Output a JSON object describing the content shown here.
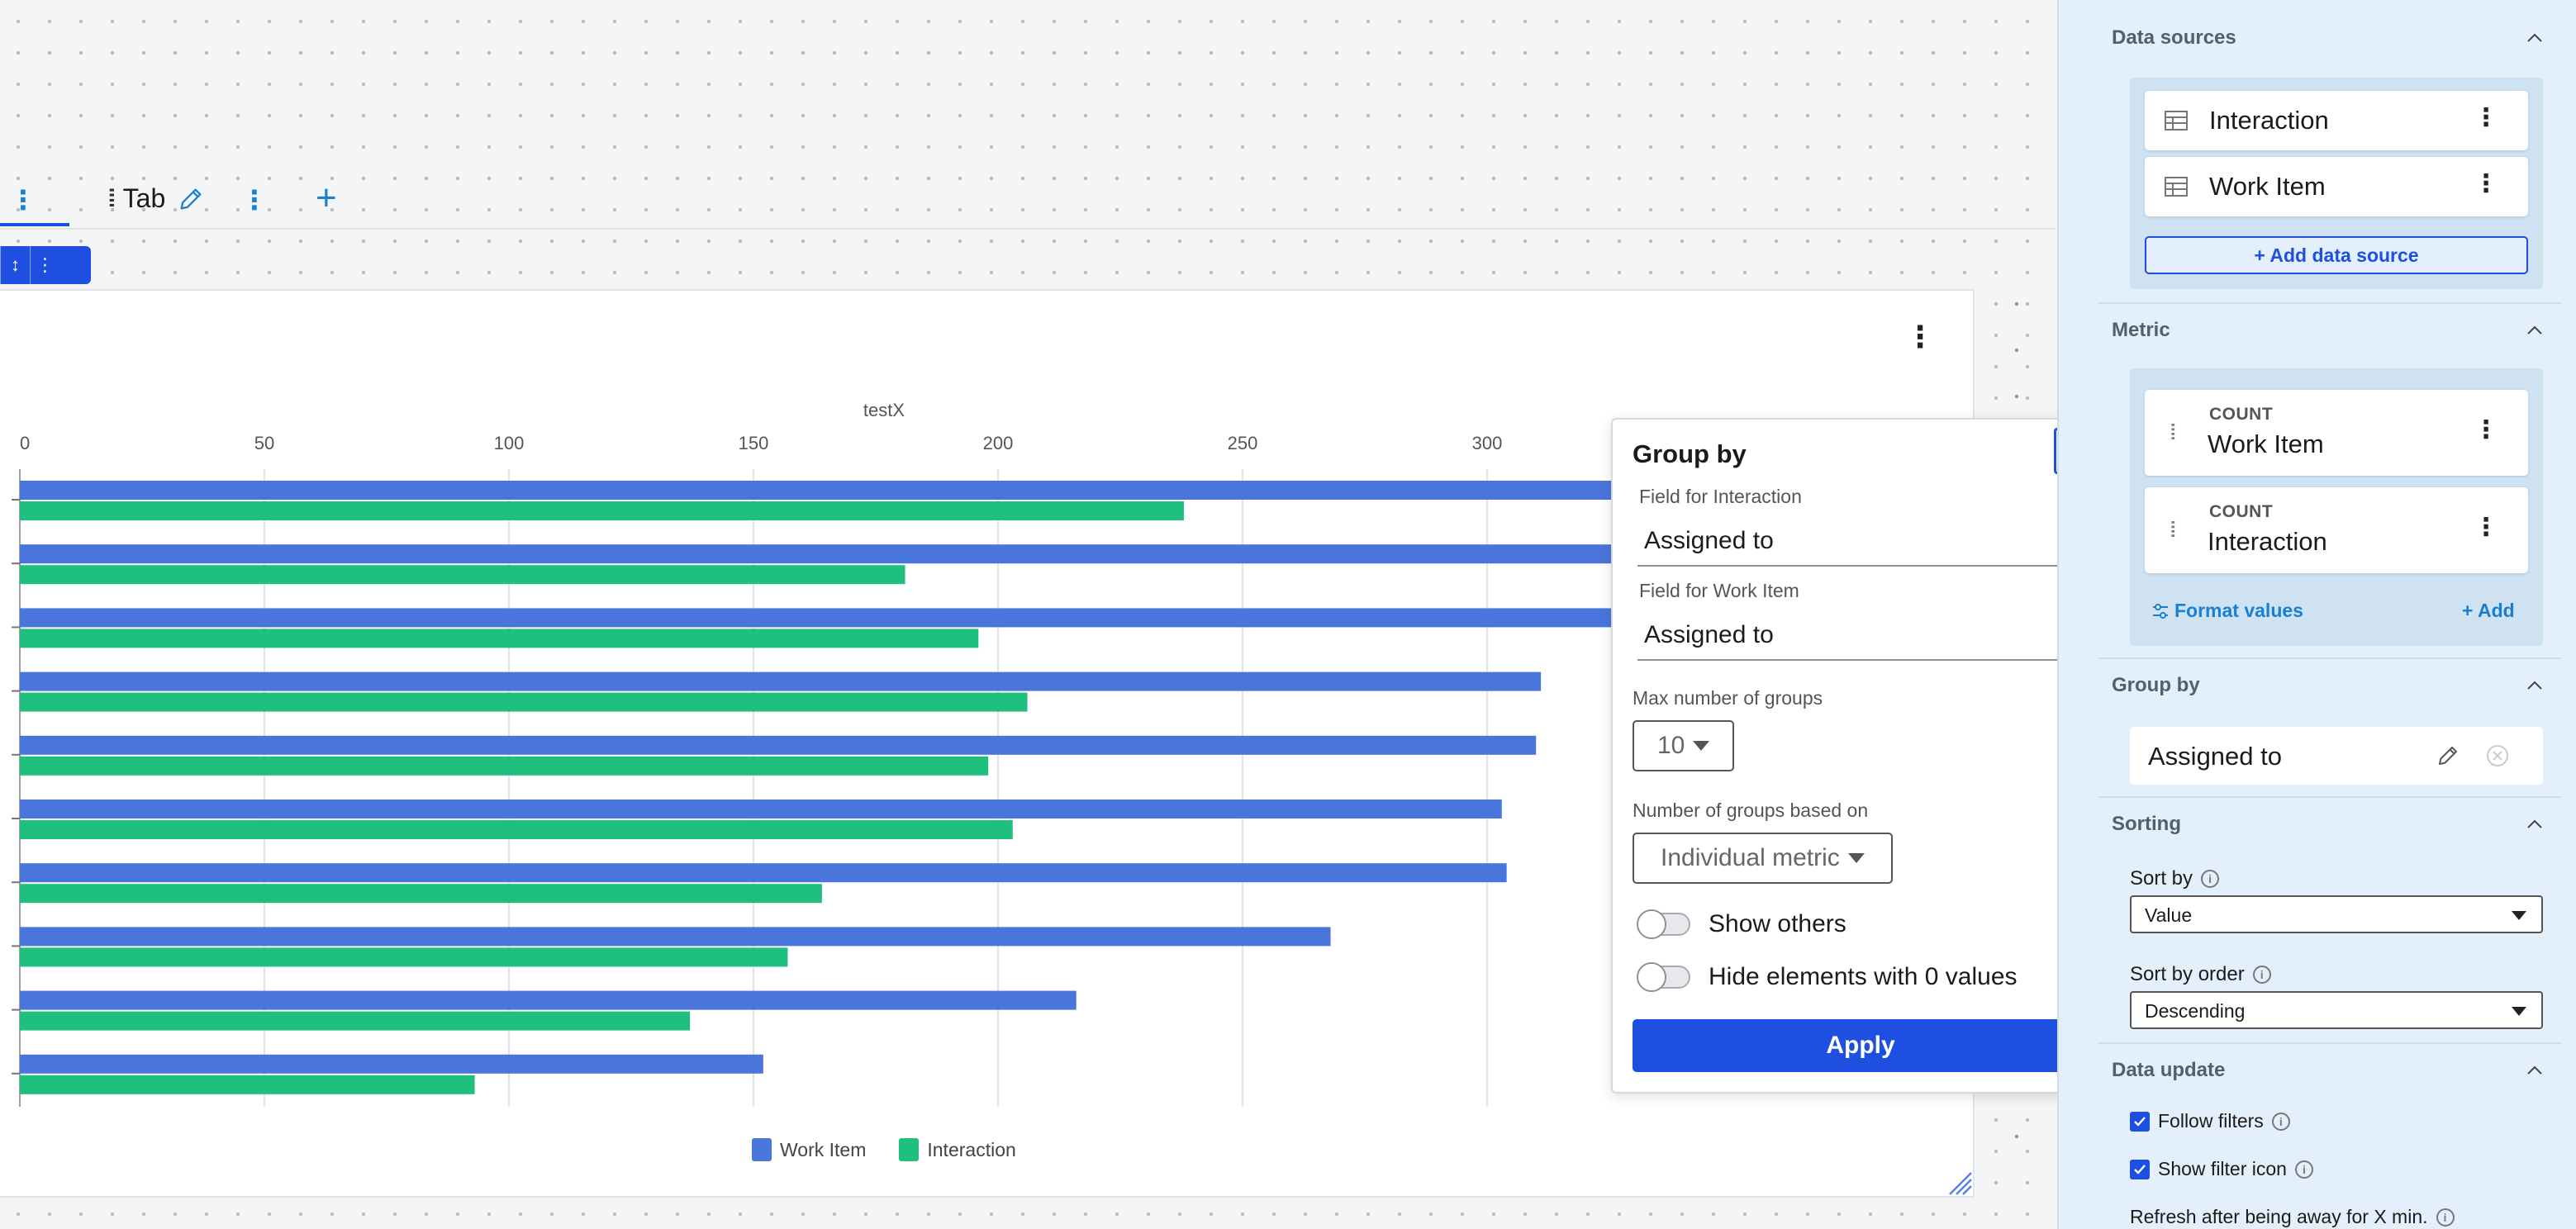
{
  "tabs": [
    {
      "label": "Tab"
    }
  ],
  "chart_data": {
    "type": "bar",
    "orientation": "horizontal",
    "title": "",
    "xlabel": "testX",
    "x_ticks": [
      0,
      50,
      100,
      150,
      200,
      250,
      300
    ],
    "xlim": [
      0,
      400
    ],
    "categories": [
      "",
      "",
      "",
      "",
      "",
      "",
      "",
      "",
      "",
      ""
    ],
    "series": [
      {
        "name": "Work Item",
        "color": "#4a76dc",
        "values": [
          340,
          335,
          330,
          311,
          310,
          303,
          304,
          268,
          216,
          152
        ]
      },
      {
        "name": "Interaction",
        "color": "#1fbf7e",
        "values": [
          238,
          181,
          196,
          206,
          198,
          203,
          164,
          157,
          137,
          93
        ]
      }
    ],
    "grid": true,
    "legend_position": "bottom-center"
  },
  "group_by_popup": {
    "title": "Group by",
    "field_interaction_label": "Field for Interaction",
    "field_interaction_value": "Assigned to",
    "field_workitem_label": "Field for Work Item",
    "field_workitem_value": "Assigned to",
    "max_groups_label": "Max number of groups",
    "max_groups_value": "10",
    "groups_based_label": "Number of groups based on",
    "groups_based_value": "Individual metric",
    "show_others_label": "Show others",
    "hide_zero_label": "Hide elements with 0 values",
    "apply_label": "Apply"
  },
  "side_panel": {
    "data_sources": {
      "title": "Data sources",
      "items": [
        {
          "name": "Interaction"
        },
        {
          "name": "Work Item"
        }
      ],
      "add_label": "+ Add data source"
    },
    "metric": {
      "title": "Metric",
      "items": [
        {
          "aggregation": "COUNT",
          "name": "Work Item"
        },
        {
          "aggregation": "COUNT",
          "name": "Interaction"
        }
      ],
      "format_label": "Format values",
      "add_label": "+ Add"
    },
    "group_by": {
      "title": "Group by",
      "value": "Assigned to"
    },
    "sorting": {
      "title": "Sorting",
      "sort_by_label": "Sort by",
      "sort_by_value": "Value",
      "sort_order_label": "Sort by order",
      "sort_order_value": "Descending"
    },
    "data_update": {
      "title": "Data update",
      "follow_filters_label": "Follow filters",
      "show_filter_icon_label": "Show filter icon",
      "refresh_label": "Refresh after being away for X min."
    }
  },
  "colors": {
    "accent": "#1f4fe0",
    "link": "#1a7fd0",
    "panel_bg": "#e3f0fb"
  }
}
